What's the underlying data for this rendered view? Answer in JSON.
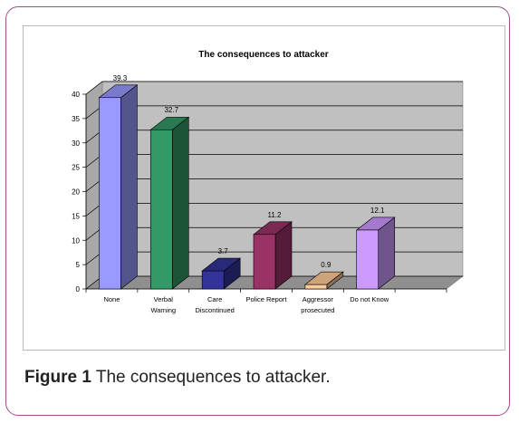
{
  "chart_data": {
    "type": "bar",
    "title": "The consequences to attacker",
    "categories": [
      "None",
      "Verbal Warning",
      "Care Discontinued",
      "Police Report",
      "Aggressor prosecuted",
      "Do not Know"
    ],
    "category_lines": [
      [
        "None"
      ],
      [
        "Verbal",
        "Warning"
      ],
      [
        "Care",
        "Discontinued"
      ],
      [
        "Police Report"
      ],
      [
        "Aggressor",
        "prosecuted"
      ],
      [
        "Do not Know"
      ]
    ],
    "values": [
      39.3,
      32.7,
      3.7,
      11.2,
      0.9,
      12.1
    ],
    "value_labels": [
      "39.3",
      "32.7",
      "3.7",
      "11.2",
      "0.9",
      "12.1"
    ],
    "colors": [
      "#9999ff",
      "#339966",
      "#333399",
      "#993366",
      "#ffcc99",
      "#cc99ff"
    ],
    "yticks": [
      0,
      5,
      10,
      15,
      20,
      25,
      30,
      35,
      40
    ],
    "ylim": [
      0,
      40
    ],
    "grid": true,
    "legend": "none",
    "plot_bg": "#c0c0c0",
    "xlabel": "",
    "ylabel": ""
  },
  "caption": {
    "label": "Figure 1",
    "text": " The consequences to attacker."
  }
}
